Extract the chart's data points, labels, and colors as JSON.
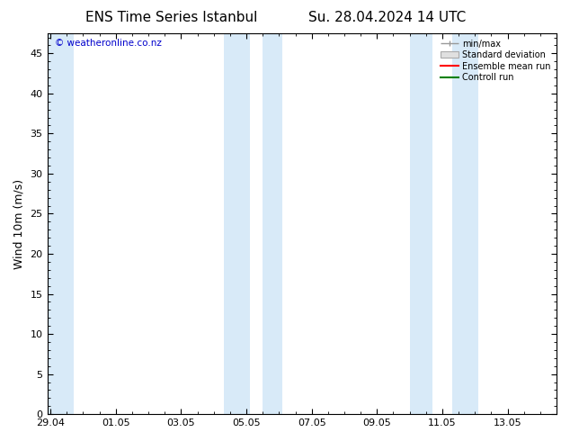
{
  "title_left": "ENS Time Series Istanbul",
  "title_right": "Su. 28.04.2024 14 UTC",
  "ylabel": "Wind 10m (m/s)",
  "ylim": [
    0,
    47.5
  ],
  "yticks": [
    0,
    5,
    10,
    15,
    20,
    25,
    30,
    35,
    40,
    45
  ],
  "xtick_labels": [
    "29.04",
    "01.05",
    "03.05",
    "05.05",
    "07.05",
    "09.05",
    "11.05",
    "13.05"
  ],
  "xtick_positions": [
    0,
    2,
    4,
    6,
    8,
    10,
    12,
    14
  ],
  "xlim": [
    -0.1,
    15.5
  ],
  "watermark": "© weatheronline.co.nz",
  "shaded_bands": [
    [
      -0.1,
      0.7
    ],
    [
      5.3,
      6.1
    ],
    [
      6.5,
      7.1
    ],
    [
      11.0,
      11.7
    ],
    [
      12.3,
      13.1
    ]
  ],
  "shade_color": "#d8eaf8",
  "legend_entries": [
    "min/max",
    "Standard deviation",
    "Ensemble mean run",
    "Controll run"
  ],
  "legend_colors": [
    "#999999",
    "#cccccc",
    "#ff0000",
    "#008000"
  ],
  "bg_color": "#ffffff",
  "plot_bg_color": "#ffffff",
  "border_color": "#000000",
  "title_fontsize": 11,
  "tick_fontsize": 8,
  "ylabel_fontsize": 9,
  "watermark_color": "#0000cc"
}
